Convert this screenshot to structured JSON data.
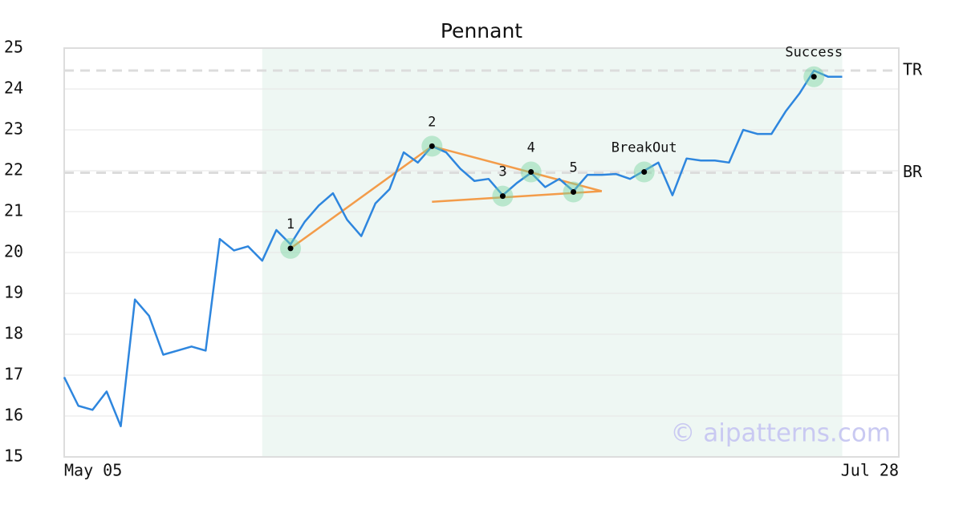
{
  "chart_data": {
    "type": "line",
    "title": "Pennant",
    "xlim": [
      0,
      59
    ],
    "xticks": [
      {
        "value": 0,
        "label": "May 05"
      },
      {
        "value": 59,
        "label": "Jul 28"
      }
    ],
    "ylim": [
      15,
      25
    ],
    "yticks": [
      15,
      16,
      17,
      18,
      19,
      20,
      21,
      22,
      23,
      24,
      25
    ],
    "grid": true,
    "series": [
      {
        "color": "#2e86de",
        "x": [
          0,
          1,
          2,
          3,
          4,
          5,
          6,
          7,
          8,
          9,
          10,
          11,
          12,
          13,
          14,
          15,
          16,
          17,
          18,
          19,
          20,
          21,
          22,
          23,
          24,
          25,
          26,
          27,
          28,
          29,
          30,
          31,
          32,
          33,
          34,
          35,
          36,
          37,
          38,
          39,
          40,
          41,
          42,
          43,
          44,
          45,
          46,
          47,
          48,
          49,
          50,
          51,
          52,
          53,
          54,
          55
        ],
        "values": [
          16.95,
          16.25,
          16.15,
          16.6,
          15.75,
          18.85,
          18.45,
          17.5,
          17.6,
          17.7,
          17.6,
          20.33,
          20.05,
          20.15,
          19.8,
          20.55,
          20.2,
          20.75,
          21.15,
          21.45,
          20.8,
          20.4,
          21.2,
          21.55,
          22.45,
          22.2,
          22.6,
          22.45,
          22.05,
          21.75,
          21.8,
          21.4,
          21.7,
          21.95,
          21.6,
          21.8,
          21.5,
          21.9,
          21.9,
          21.92,
          21.8,
          22.0,
          22.2,
          21.4,
          22.3,
          22.25,
          22.25,
          22.2,
          23.0,
          22.9,
          22.9,
          23.45,
          23.9,
          24.45,
          24.3,
          24.3
        ]
      }
    ],
    "shaded_region": [
      14,
      55
    ],
    "levels": [
      {
        "label": "TR",
        "value": 24.45
      },
      {
        "label": "BR",
        "value": 21.95
      }
    ],
    "trend_lines": [
      {
        "x": [
          16,
          26
        ],
        "y": [
          20.1,
          22.6
        ]
      },
      {
        "x": [
          26,
          38
        ],
        "y": [
          22.6,
          21.5
        ]
      },
      {
        "x": [
          26,
          38
        ],
        "y": [
          21.24,
          21.5
        ]
      }
    ],
    "points": [
      {
        "label": "1",
        "x": 16,
        "y": 20.1
      },
      {
        "label": "2",
        "x": 26,
        "y": 22.6
      },
      {
        "label": "3",
        "x": 31,
        "y": 21.38
      },
      {
        "label": "4",
        "x": 33,
        "y": 21.97
      },
      {
        "label": "5",
        "x": 36,
        "y": 21.48
      },
      {
        "label": "BreakOut",
        "x": 41,
        "y": 21.97
      },
      {
        "label": "Success",
        "x": 53,
        "y": 24.3
      }
    ],
    "watermark": "© aipatterns.com"
  }
}
